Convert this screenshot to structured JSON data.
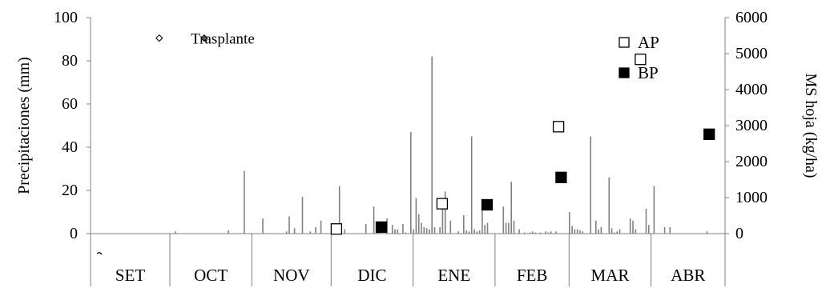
{
  "chart_data": {
    "type": "bar",
    "title": "",
    "left_axis": {
      "label": "Precipitaciones (mm)",
      "range": [
        0,
        100
      ],
      "ticks": [
        0,
        20,
        40,
        60,
        80,
        100
      ]
    },
    "right_axis": {
      "label": "MS hoja (kg/ha)",
      "range": [
        0,
        6000
      ],
      "ticks": [
        0,
        1000,
        2000,
        3000,
        4000,
        5000,
        6000
      ]
    },
    "months": [
      "SET",
      "OCT",
      "NOV",
      "DIC",
      "ENE",
      "FEB",
      "MAR",
      "ABR"
    ],
    "day_range": [
      0,
      240
    ],
    "month_boundaries": [
      0,
      30,
      61,
      91,
      122,
      153,
      181,
      212,
      240
    ],
    "precipitation": {
      "name": "Precipitaciones",
      "day": [
        32,
        52,
        58,
        65,
        74,
        75,
        77,
        80,
        83,
        85,
        87,
        94,
        96,
        104,
        107,
        108,
        109,
        112,
        114,
        115,
        116,
        118,
        119,
        121,
        122,
        123,
        124,
        125,
        126,
        127,
        128,
        129,
        130,
        132,
        133,
        134,
        136,
        139,
        141,
        142,
        143,
        144,
        145,
        146,
        147,
        148,
        149,
        150,
        156,
        157,
        158,
        159,
        160,
        162,
        164,
        166,
        167,
        168,
        170,
        172,
        173,
        174,
        176,
        181,
        182,
        183,
        184,
        185,
        186,
        189,
        191,
        192,
        193,
        196,
        197,
        198,
        199,
        200,
        204,
        205,
        206,
        210,
        211,
        213,
        217,
        219,
        233
      ],
      "mm": [
        1,
        1.5,
        29,
        7,
        1,
        8,
        2.5,
        17,
        1,
        3,
        6,
        22,
        2,
        4.5,
        12.5,
        2,
        0.5,
        7,
        4,
        2,
        2,
        4.5,
        0.5,
        47,
        2,
        16.5,
        9,
        5,
        3,
        2.5,
        2,
        82,
        3,
        3,
        15,
        19.5,
        6,
        1,
        8.5,
        1.5,
        1,
        45,
        2,
        1,
        1.5,
        12.5,
        4,
        5,
        12.5,
        5,
        5,
        24,
        6,
        2,
        0.5,
        0.5,
        1,
        0.5,
        0.5,
        1,
        0.5,
        1,
        1,
        10,
        3.5,
        2,
        2,
        1.5,
        1,
        45,
        6,
        2,
        3,
        26,
        2.5,
        0.5,
        1,
        2,
        7,
        6,
        2,
        11.5,
        4,
        22,
        3,
        3,
        1
      ],
      "color": "#808080"
    },
    "series": [
      {
        "name": "AP",
        "marker": "open-square",
        "days": [
          93,
          133,
          177,
          208
        ],
        "kg_ha": [
          128,
          830,
          2970,
          4840
        ]
      },
      {
        "name": "BP",
        "marker": "filled-square",
        "days": [
          110,
          150,
          178,
          234
        ],
        "kg_ha": [
          180,
          800,
          1560,
          2760
        ]
      }
    ],
    "annotations": [
      {
        "text": "Trasplante",
        "day": 50,
        "value_mm": 90.5
      },
      {
        "marker": "open-diamond",
        "day": 26,
        "value_mm": 90.5
      },
      {
        "marker": "filled-diamond",
        "day": 43,
        "value_mm": 90.5
      }
    ],
    "legend": {
      "position": "top-right",
      "entries": [
        "AP",
        "BP"
      ]
    },
    "grid": false
  }
}
